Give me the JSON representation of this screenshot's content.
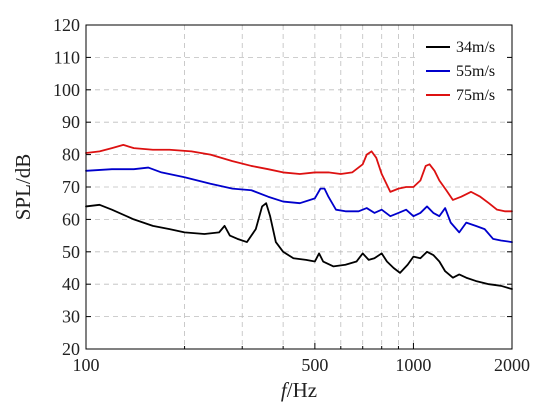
{
  "chart_data": {
    "type": "line",
    "title": "",
    "xlabel_italic": "f",
    "xlabel_unit": "/Hz",
    "ylabel": "SPL/dB",
    "xscale": "log",
    "xlim": [
      100,
      2000
    ],
    "ylim": [
      20,
      120
    ],
    "grid": true,
    "legend_position": "top-right",
    "x_major_ticks": [
      100,
      500,
      1000,
      2000
    ],
    "x_major_tick_labels": [
      "100",
      "500",
      "1000",
      "2000"
    ],
    "x_minor_gridlines": [
      200,
      300,
      400,
      600,
      700,
      800,
      900
    ],
    "y_ticks": [
      20,
      30,
      40,
      50,
      60,
      70,
      80,
      90,
      100,
      110,
      120
    ],
    "y_tick_labels": [
      "20",
      "30",
      "40",
      "50",
      "60",
      "70",
      "80",
      "90",
      "100",
      "110",
      "120"
    ],
    "series": [
      {
        "name": "34m/s",
        "color": "#000000",
        "points": [
          [
            100,
            64
          ],
          [
            110,
            64.5
          ],
          [
            120,
            63
          ],
          [
            140,
            60
          ],
          [
            160,
            58
          ],
          [
            180,
            57
          ],
          [
            200,
            56
          ],
          [
            230,
            55.5
          ],
          [
            255,
            56
          ],
          [
            265,
            58
          ],
          [
            275,
            55
          ],
          [
            290,
            54
          ],
          [
            310,
            53
          ],
          [
            330,
            57
          ],
          [
            345,
            64
          ],
          [
            355,
            65
          ],
          [
            365,
            61
          ],
          [
            380,
            53
          ],
          [
            400,
            50
          ],
          [
            430,
            48
          ],
          [
            470,
            47.5
          ],
          [
            500,
            47
          ],
          [
            515,
            49.5
          ],
          [
            530,
            47
          ],
          [
            570,
            45.5
          ],
          [
            620,
            46
          ],
          [
            670,
            47
          ],
          [
            700,
            49.5
          ],
          [
            730,
            47.5
          ],
          [
            760,
            48
          ],
          [
            800,
            49.5
          ],
          [
            830,
            47
          ],
          [
            870,
            45
          ],
          [
            910,
            43.5
          ],
          [
            960,
            46
          ],
          [
            1000,
            48.5
          ],
          [
            1050,
            48
          ],
          [
            1100,
            50
          ],
          [
            1150,
            49
          ],
          [
            1200,
            47
          ],
          [
            1250,
            44
          ],
          [
            1320,
            42
          ],
          [
            1380,
            43
          ],
          [
            1450,
            42
          ],
          [
            1550,
            41
          ],
          [
            1700,
            40
          ],
          [
            1850,
            39.5
          ],
          [
            2000,
            38.5
          ]
        ]
      },
      {
        "name": "55m/s",
        "color": "#0000cc",
        "points": [
          [
            100,
            75
          ],
          [
            120,
            75.5
          ],
          [
            140,
            75.5
          ],
          [
            155,
            76
          ],
          [
            170,
            74.5
          ],
          [
            200,
            73
          ],
          [
            240,
            71
          ],
          [
            280,
            69.5
          ],
          [
            320,
            69
          ],
          [
            360,
            67
          ],
          [
            400,
            65.5
          ],
          [
            450,
            65
          ],
          [
            500,
            66.5
          ],
          [
            520,
            69.5
          ],
          [
            535,
            69.5
          ],
          [
            550,
            67
          ],
          [
            580,
            63
          ],
          [
            620,
            62.5
          ],
          [
            680,
            62.5
          ],
          [
            720,
            63.5
          ],
          [
            760,
            62
          ],
          [
            800,
            63
          ],
          [
            850,
            61
          ],
          [
            900,
            62
          ],
          [
            950,
            63
          ],
          [
            1000,
            61
          ],
          [
            1050,
            62
          ],
          [
            1100,
            64
          ],
          [
            1150,
            62
          ],
          [
            1200,
            61
          ],
          [
            1250,
            63.5
          ],
          [
            1300,
            59
          ],
          [
            1380,
            56
          ],
          [
            1450,
            59
          ],
          [
            1550,
            58
          ],
          [
            1650,
            57
          ],
          [
            1750,
            54
          ],
          [
            1850,
            53.5
          ],
          [
            2000,
            53
          ]
        ]
      },
      {
        "name": "75m/s",
        "color": "#dd1111",
        "points": [
          [
            100,
            80.5
          ],
          [
            110,
            81
          ],
          [
            120,
            82
          ],
          [
            130,
            83
          ],
          [
            140,
            82
          ],
          [
            160,
            81.5
          ],
          [
            180,
            81.5
          ],
          [
            210,
            81
          ],
          [
            240,
            80
          ],
          [
            280,
            78
          ],
          [
            320,
            76.5
          ],
          [
            360,
            75.5
          ],
          [
            400,
            74.5
          ],
          [
            450,
            74
          ],
          [
            500,
            74.5
          ],
          [
            550,
            74.5
          ],
          [
            600,
            74
          ],
          [
            650,
            74.5
          ],
          [
            700,
            77
          ],
          [
            720,
            80
          ],
          [
            745,
            81
          ],
          [
            770,
            79
          ],
          [
            800,
            74
          ],
          [
            850,
            68.5
          ],
          [
            900,
            69.5
          ],
          [
            950,
            70
          ],
          [
            1000,
            70
          ],
          [
            1050,
            72
          ],
          [
            1090,
            76.5
          ],
          [
            1120,
            77
          ],
          [
            1160,
            75
          ],
          [
            1200,
            72
          ],
          [
            1260,
            69
          ],
          [
            1320,
            66
          ],
          [
            1400,
            67
          ],
          [
            1500,
            68.5
          ],
          [
            1600,
            67
          ],
          [
            1700,
            65
          ],
          [
            1800,
            63
          ],
          [
            1900,
            62.5
          ],
          [
            2000,
            62.5
          ]
        ]
      }
    ]
  }
}
